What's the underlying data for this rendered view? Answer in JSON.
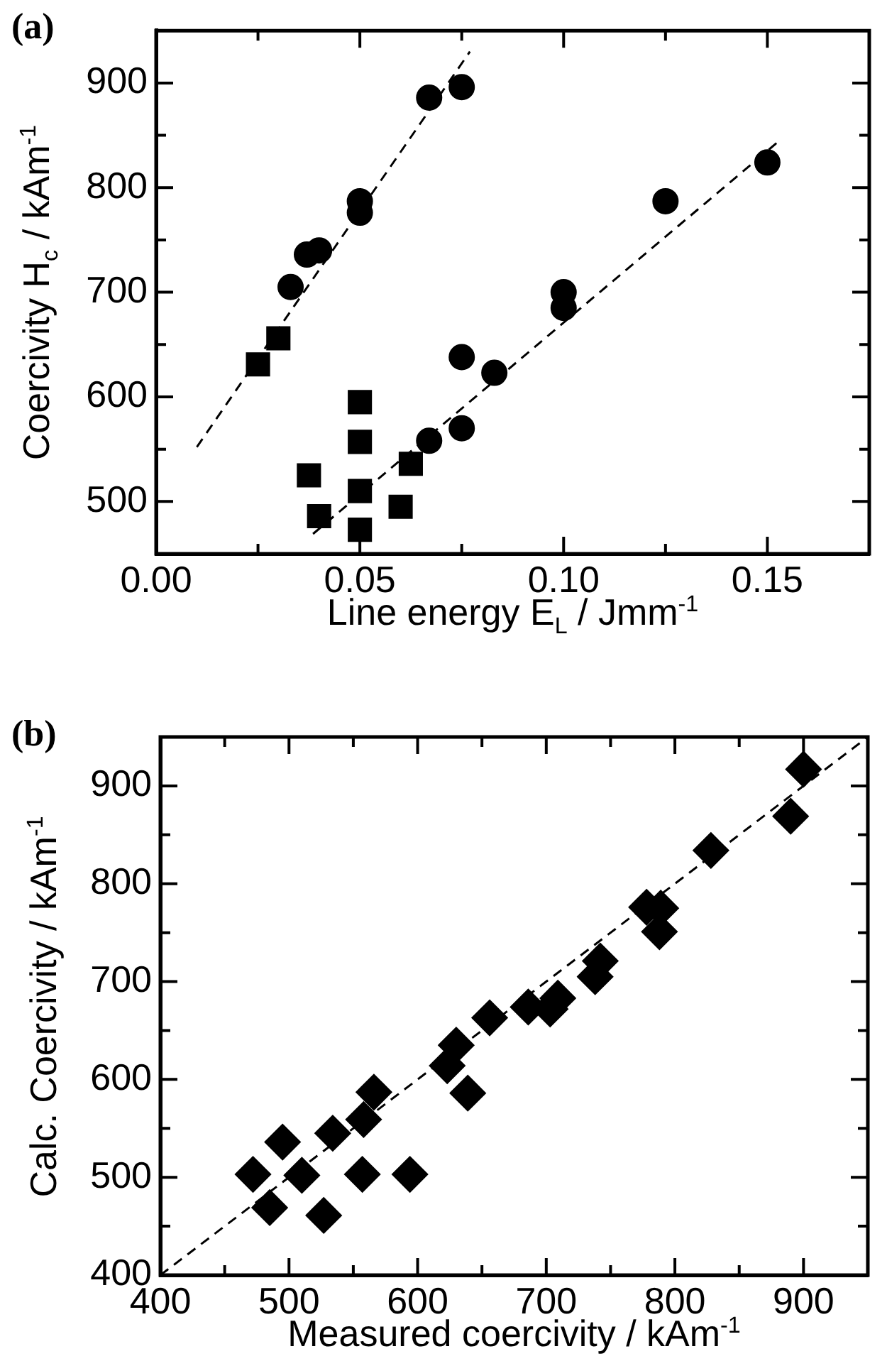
{
  "chart_data": [
    {
      "type": "scatter",
      "title": "(a)",
      "xlabel": "Line energy E$_{L}$ / Jmm$^{-1}$",
      "ylabel": "Coercivity H$_{c}$ / kAm$^{-1}$",
      "xlim": [
        0,
        0.175
      ],
      "ylim": [
        450,
        950
      ],
      "xticks": [
        {
          "value": 0,
          "label": "0.00"
        },
        {
          "value": 0.025,
          "label": null
        },
        0.05,
        {
          "value": 0.075,
          "label": null
        },
        {
          "value": 0.1,
          "label": "0.10"
        },
        {
          "value": 0.125,
          "label": null
        },
        0.15
      ],
      "yticks": [
        500,
        {
          "value": 550,
          "label": null
        },
        600,
        {
          "value": 650,
          "label": null
        },
        700,
        {
          "value": 750,
          "label": null
        },
        800,
        {
          "value": 850,
          "label": null
        },
        900
      ],
      "grid": false,
      "series": [
        {
          "color": "#000000",
          "marker": "circle",
          "x": [
            0.033,
            0.037,
            0.04,
            0.05,
            0.05,
            0.067,
            0.075,
            0.1,
            0.1,
            0.125,
            0.15,
            0.075,
            0.083,
            0.067,
            0.075
          ],
          "values": [
            705,
            736,
            740,
            787,
            776,
            886,
            896,
            700,
            685,
            787,
            824,
            638,
            623,
            558,
            570
          ]
        },
        {
          "color": "#000000",
          "marker": "square",
          "x": [
            0.025,
            0.03,
            0.05,
            0.05,
            0.0375,
            0.04,
            0.05,
            0.05,
            0.06,
            0.0625
          ],
          "values": [
            631,
            656,
            595,
            557,
            525,
            486,
            510,
            473,
            495,
            536
          ]
        },
        {
          "type": "line",
          "color": "#000000",
          "marker": "none",
          "line_style": "dashed",
          "x": [
            0.01,
            0.077
          ],
          "values": [
            552,
            930
          ]
        },
        {
          "type": "line",
          "color": "#000000",
          "marker": "none",
          "line_style": "dashed",
          "x": [
            0.0385,
            0.153
          ],
          "values": [
            469,
            845
          ]
        }
      ]
    },
    {
      "type": "scatter",
      "title": "(b)",
      "xlabel": "Measured coercivity / kAm$^{-1}$",
      "ylabel": "Calc. Coercivity / kAm$^{-1}$",
      "xlim": [
        400,
        950
      ],
      "ylim": [
        400,
        950
      ],
      "xticks": [
        400,
        {
          "value": 450,
          "label": null
        },
        500,
        {
          "value": 550,
          "label": null
        },
        600,
        {
          "value": 650,
          "label": null
        },
        700,
        {
          "value": 750,
          "label": null
        },
        800,
        {
          "value": 850,
          "label": null
        },
        900
      ],
      "yticks": [
        400,
        {
          "value": 450,
          "label": null
        },
        500,
        {
          "value": 550,
          "label": null
        },
        600,
        {
          "value": 650,
          "label": null
        },
        700,
        {
          "value": 750,
          "label": null
        },
        800,
        {
          "value": 850,
          "label": null
        },
        900
      ],
      "grid": false,
      "series": [
        {
          "color": "#000000",
          "marker": "diamond",
          "x": [
            472,
            485,
            495,
            510,
            527,
            534,
            557,
            558,
            566,
            594,
            623,
            630,
            639,
            656,
            686,
            703,
            709,
            738,
            742,
            778,
            789,
            788,
            828,
            890,
            900
          ],
          "values": [
            503,
            469,
            536,
            502,
            461,
            545,
            503,
            559,
            587,
            503,
            614,
            635,
            586,
            663,
            674,
            672,
            683,
            705,
            721,
            776,
            775,
            751,
            834,
            869,
            917
          ]
        },
        {
          "type": "line",
          "color": "#000000",
          "marker": "none",
          "line_style": "dashed",
          "x": [
            400,
            950
          ],
          "values": [
            400,
            950
          ]
        }
      ]
    }
  ]
}
